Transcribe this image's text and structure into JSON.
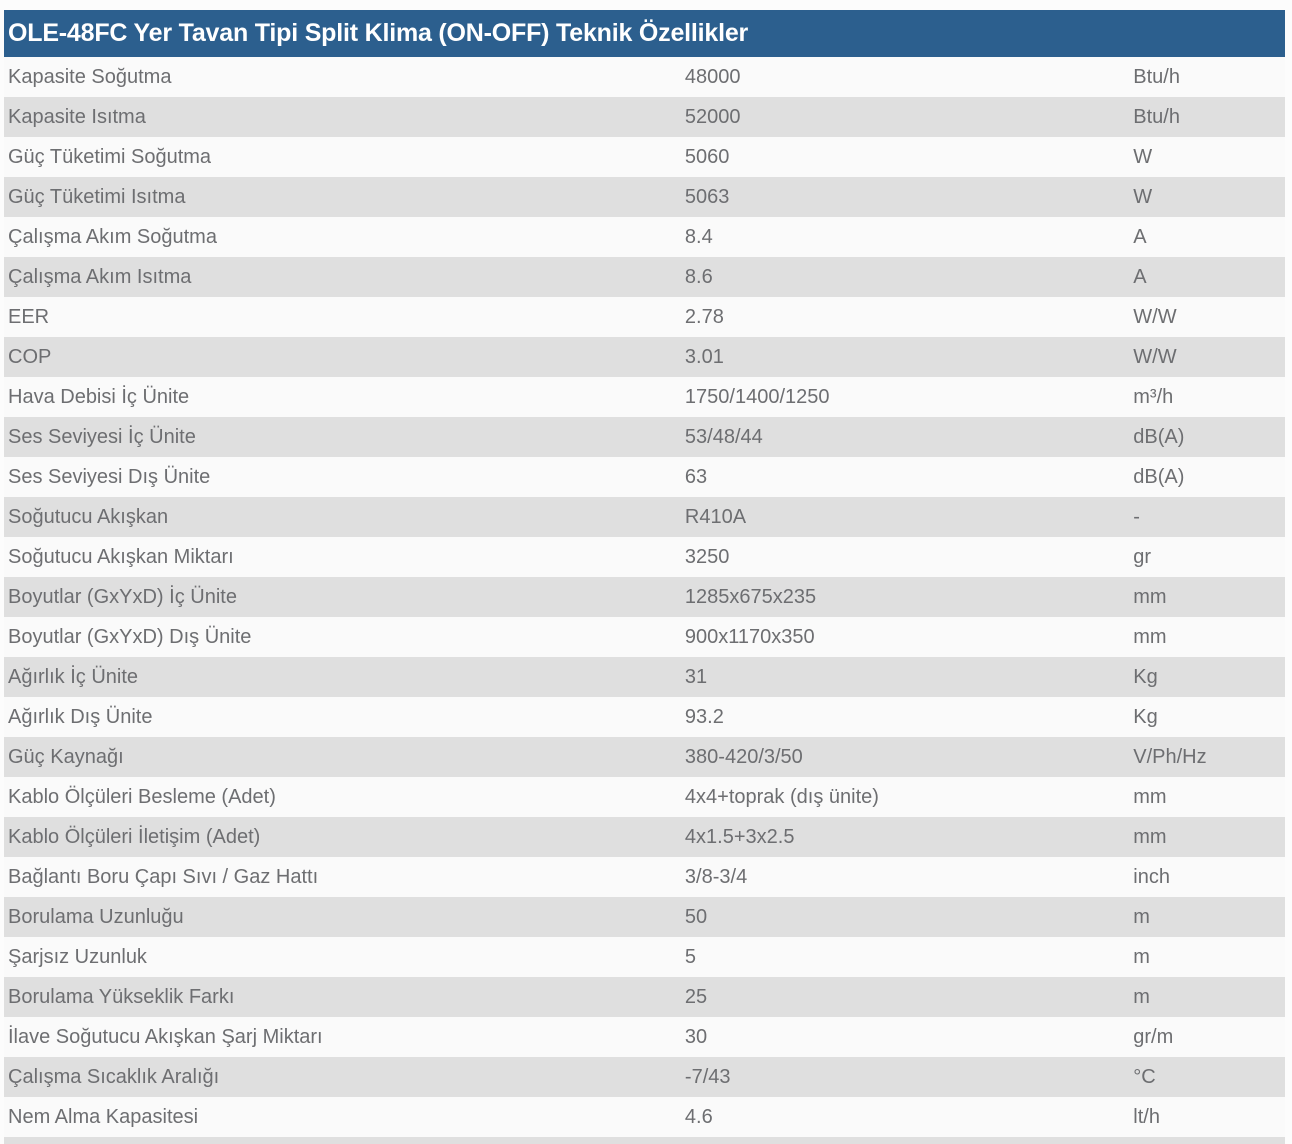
{
  "title": "OLE-48FC Yer Tavan Tipi Split Klima (ON-OFF) Teknik Özellikler",
  "colors": {
    "header_bg": "#2c5f8e",
    "header_text": "#ffffff",
    "row_bg": "#fafafa",
    "row_alt_bg": "#dfdfdf",
    "text": "#6d6e71"
  },
  "table": {
    "rows": [
      {
        "label": "Kapasite Soğutma",
        "value": "48000",
        "unit": "Btu/h"
      },
      {
        "label": "Kapasite Isıtma",
        "value": "52000",
        "unit": "Btu/h"
      },
      {
        "label": "Güç Tüketimi Soğutma",
        "value": "5060",
        "unit": "W"
      },
      {
        "label": "Güç Tüketimi Isıtma",
        "value": "5063",
        "unit": "W"
      },
      {
        "label": "Çalışma Akım Soğutma",
        "value": "8.4",
        "unit": "A"
      },
      {
        "label": "Çalışma Akım Isıtma",
        "value": "8.6",
        "unit": "A"
      },
      {
        "label": "EER",
        "value": "2.78",
        "unit": "W/W"
      },
      {
        "label": "COP",
        "value": "3.01",
        "unit": "W/W"
      },
      {
        "label": "Hava Debisi İç Ünite",
        "value": "1750/1400/1250",
        "unit": "m³/h"
      },
      {
        "label": "Ses Seviyesi İç Ünite",
        "value": "53/48/44",
        "unit": "dB(A)"
      },
      {
        "label": "Ses Seviyesi Dış Ünite",
        "value": "63",
        "unit": "dB(A)"
      },
      {
        "label": "Soğutucu Akışkan",
        "value": "R410A",
        "unit": "-"
      },
      {
        "label": "Soğutucu Akışkan Miktarı",
        "value": "3250",
        "unit": "gr"
      },
      {
        "label": "Boyutlar (GxYxD) İç Ünite",
        "value": "1285x675x235",
        "unit": "mm"
      },
      {
        "label": "Boyutlar (GxYxD) Dış Ünite",
        "value": "900x1170x350",
        "unit": "mm"
      },
      {
        "label": "Ağırlık İç Ünite",
        "value": "31",
        "unit": "Kg"
      },
      {
        "label": "Ağırlık Dış Ünite",
        "value": "93.2",
        "unit": "Kg"
      },
      {
        "label": "Güç Kaynağı",
        "value": "380-420/3/50",
        "unit": "V/Ph/Hz"
      },
      {
        "label": "Kablo Ölçüleri Besleme (Adet)",
        "value": "4x4+toprak (dış ünite)",
        "unit": "mm"
      },
      {
        "label": "Kablo Ölçüleri İletişim (Adet)",
        "value": "4x1.5+3x2.5",
        "unit": "mm"
      },
      {
        "label": "Bağlantı Boru Çapı Sıvı / Gaz Hattı",
        "value": "3/8-3/4",
        "unit": "inch"
      },
      {
        "label": "Borulama Uzunluğu",
        "value": "50",
        "unit": "m"
      },
      {
        "label": "Şarjsız Uzunluk",
        "value": "5",
        "unit": "m"
      },
      {
        "label": "Borulama Yükseklik Farkı",
        "value": "25",
        "unit": "m"
      },
      {
        "label": "İlave Soğutucu Akışkan Şarj Miktarı",
        "value": "30",
        "unit": "gr/m"
      },
      {
        "label": "Çalışma Sıcaklık Aralığı",
        "value": "-7/43",
        "unit": "°C"
      },
      {
        "label": "Nem Alma Kapasitesi",
        "value": "4.6",
        "unit": "lt/h"
      }
    ]
  }
}
